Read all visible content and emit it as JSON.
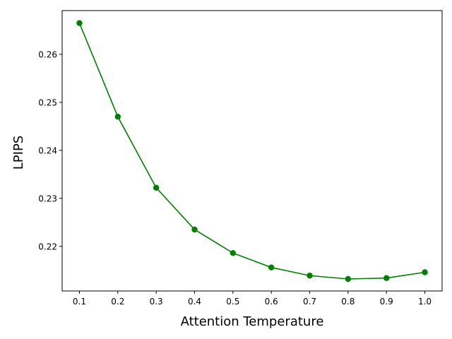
{
  "chart_data": {
    "type": "line",
    "title": "",
    "xlabel": "Attention Temperature",
    "ylabel": "LPIPS",
    "xlim": [
      0.055,
      1.045
    ],
    "ylim": [
      0.2107,
      0.2691
    ],
    "xticks": [
      0.1,
      0.2,
      0.3,
      0.4,
      0.5,
      0.6,
      0.7,
      0.8,
      0.9,
      1.0
    ],
    "xtick_labels": [
      "0.1",
      "0.2",
      "0.3",
      "0.4",
      "0.5",
      "0.6",
      "0.7",
      "0.8",
      "0.9",
      "1.0"
    ],
    "yticks": [
      0.22,
      0.23,
      0.24,
      0.25,
      0.26
    ],
    "ytick_labels": [
      "0.22",
      "0.23",
      "0.24",
      "0.25",
      "0.26"
    ],
    "grid": false,
    "legend": "none",
    "series": [
      {
        "color": "#008000",
        "marker": "circle",
        "x": [
          0.1,
          0.2,
          0.3,
          0.4,
          0.5,
          0.6,
          0.7,
          0.8,
          0.9,
          1.0
        ],
        "y": [
          0.2665,
          0.247,
          0.2322,
          0.2235,
          0.2186,
          0.2156,
          0.2139,
          0.2132,
          0.2134,
          0.2146
        ]
      }
    ]
  }
}
